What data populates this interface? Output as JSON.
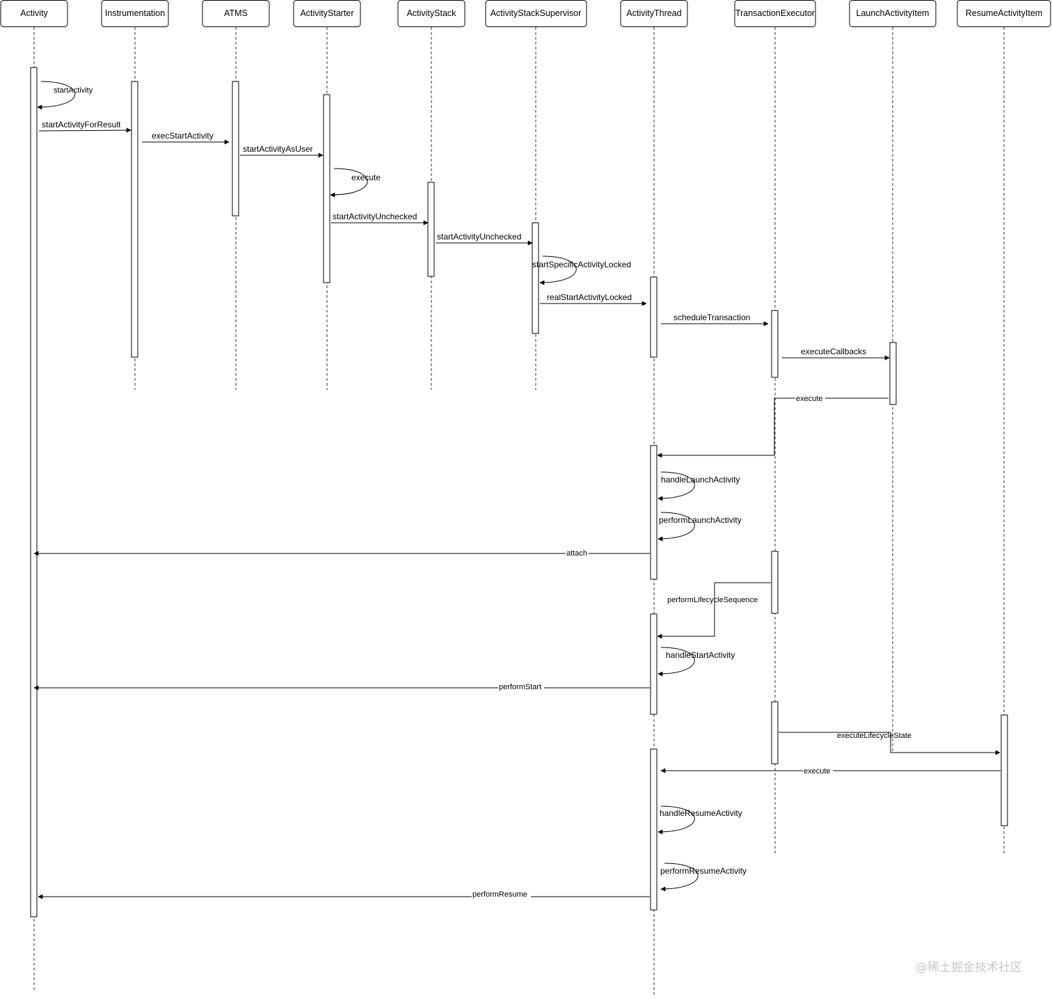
{
  "participants": [
    {
      "id": "activity",
      "label": "Activity"
    },
    {
      "id": "instrumentation",
      "label": "Instrumentation"
    },
    {
      "id": "atms",
      "label": "ATMS"
    },
    {
      "id": "activity-starter",
      "label": "ActivityStarter"
    },
    {
      "id": "activity-stack",
      "label": "ActivityStack"
    },
    {
      "id": "activity-stack-supervisor",
      "label": "ActivityStackSupervisor"
    },
    {
      "id": "activity-thread",
      "label": "ActivityThread"
    },
    {
      "id": "transaction-executor",
      "label": "TransactionExecutor"
    },
    {
      "id": "launch-activity-item",
      "label": "LaunchActivityItem"
    },
    {
      "id": "resume-activity-item",
      "label": "ResumeActivityItem"
    }
  ],
  "messages": {
    "start_activity": "startActivity",
    "start_activity_for_result": "startActivityForResult",
    "exec_start_activity": "execStartActivity",
    "start_activity_as_user": "startActivityAsUser",
    "execute_1": "execute",
    "start_activity_unchecked_1": "startActivityUnchecked",
    "start_activity_unchecked_2": "startActivityUnchecked",
    "start_specific_activity_locked": "startSpecificActivityLocked",
    "real_start_activity_locked": "realStartActivityLocked",
    "schedule_transaction": "scheduleTransaction",
    "execute_callbacks": "executeCallbacks",
    "execute_2": "execute",
    "handle_launch_activity": "handleLaunchActivity",
    "perform_launch_activity": "performLaunchActivity",
    "attach": "attach",
    "perform_lifecycle_sequence": "performLifecycleSequence",
    "handle_start_activity": "handleStartActivity",
    "perform_start": "performStart",
    "execute_lifecycle_state": "executeLifecycleState",
    "execute_3": "execute",
    "handle_resume_activity": "handleResumeActivity",
    "perform_resume_activity": "performResumeActivity",
    "perform_resume": "performResume"
  },
  "watermark": "@稀土掘金技术社区"
}
